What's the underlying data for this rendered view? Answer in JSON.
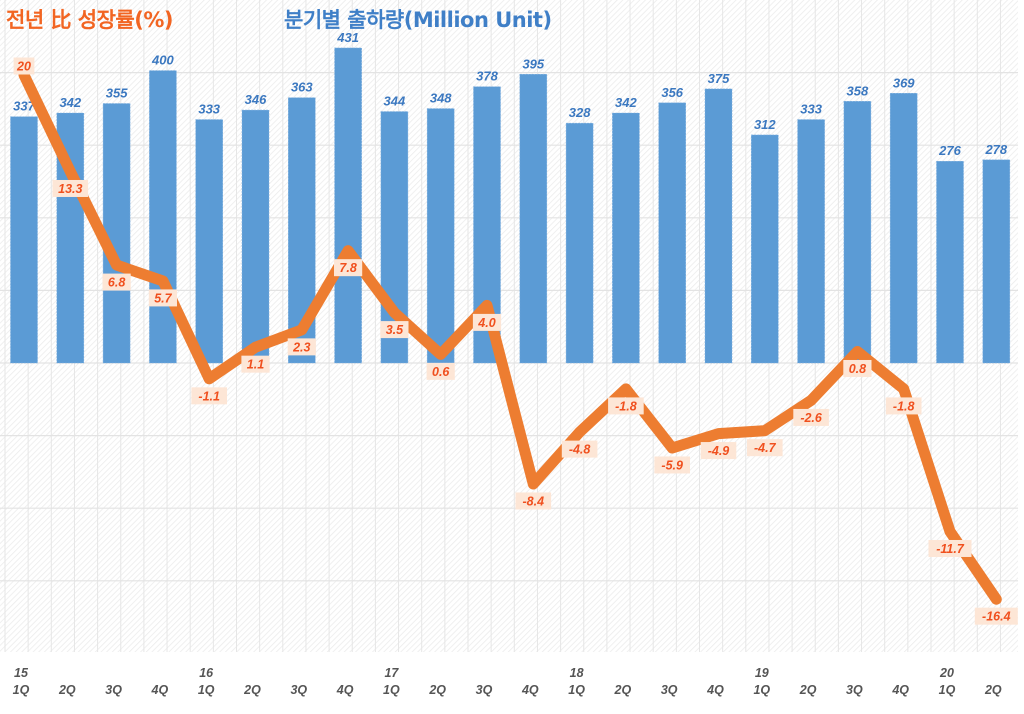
{
  "chart_data": {
    "type": "bar+line",
    "title_left": "전년 比 성장률(%)",
    "title_right": "분기별 출하량(Million Unit)",
    "categories": [
      "1Q",
      "2Q",
      "3Q",
      "4Q",
      "1Q",
      "2Q",
      "3Q",
      "4Q",
      "1Q",
      "2Q",
      "3Q",
      "4Q",
      "1Q",
      "2Q",
      "3Q",
      "4Q",
      "1Q",
      "2Q",
      "3Q",
      "4Q",
      "1Q",
      "2Q"
    ],
    "year_labels": [
      "15",
      "",
      "",
      "",
      "16",
      "",
      "",
      "",
      "17",
      "",
      "",
      "",
      "18",
      "",
      "",
      "",
      "19",
      "",
      "",
      "",
      "20",
      ""
    ],
    "series": [
      {
        "name": "분기별 출하량(Million Unit)",
        "type": "bar",
        "color": "#5b9bd5",
        "label_color": "#3b78c0",
        "values": [
          337,
          342,
          355,
          400,
          333,
          346,
          363,
          431,
          344,
          348,
          378,
          395,
          328,
          342,
          356,
          375,
          312,
          333,
          358,
          369,
          276,
          278
        ],
        "labels": [
          "337",
          "342",
          "355",
          "400",
          "333",
          "346",
          "363",
          "431",
          "344",
          "348",
          "378",
          "395",
          "328",
          "342",
          "356",
          "375",
          "312",
          "333",
          "358",
          "369",
          "276",
          "278"
        ],
        "ylim": [
          0,
          500
        ]
      },
      {
        "name": "전년 比 성장률(%)",
        "type": "line",
        "color": "#ed7d31",
        "label_color": "#f0501e",
        "label_bg": "#fde6d6",
        "values": [
          20,
          13.3,
          6.8,
          5.7,
          -1.1,
          1.1,
          2.3,
          7.8,
          3.5,
          0.6,
          4.0,
          -8.4,
          -4.8,
          -1.8,
          -5.9,
          -4.9,
          -4.7,
          -2.6,
          0.8,
          -1.8,
          -11.7,
          -16.4
        ],
        "labels": [
          "20",
          "13.3",
          "6.8",
          "5.7",
          "-1.1",
          "1.1",
          "2.3",
          "7.8",
          "3.5",
          "0.6",
          "4.0",
          "-8.4",
          "-4.8",
          "-1.8",
          "-5.9",
          "-4.9",
          "-4.7",
          "-2.6",
          "0.8",
          "-1.8",
          "-11.7",
          "-16.4"
        ],
        "ylim": [
          -20,
          25
        ]
      }
    ],
    "xlabel": "",
    "ylabel": "",
    "grid": true,
    "legend": "none"
  }
}
